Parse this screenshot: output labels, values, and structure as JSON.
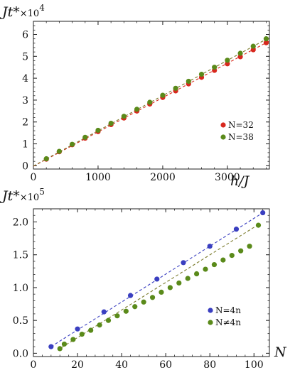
{
  "chart_data": [
    {
      "type": "scatter",
      "title": "",
      "ylabel": {
        "main": "Jt*",
        "times": "×10",
        "exp": "4"
      },
      "xlabel": "h/J",
      "xlim": [
        0,
        3650
      ],
      "ylim": [
        -0.15,
        6.6
      ],
      "xticks": [
        0,
        1000,
        2000,
        3000
      ],
      "yticks": [
        0,
        1,
        2,
        3,
        4,
        5,
        6
      ],
      "grid": false,
      "legend_position": "lower-right",
      "series": [
        {
          "name": "N=32",
          "color": "#d8281e",
          "line_color": "#d8281e",
          "x": [
            200,
            400,
            600,
            800,
            1000,
            1200,
            1400,
            1600,
            1800,
            2000,
            2200,
            2400,
            2600,
            2800,
            3000,
            3200,
            3400,
            3600
          ],
          "y": [
            0.3,
            0.64,
            0.96,
            1.26,
            1.56,
            1.88,
            2.18,
            2.5,
            2.82,
            3.12,
            3.42,
            3.74,
            4.04,
            4.36,
            4.66,
            4.98,
            5.3,
            5.62
          ]
        },
        {
          "name": "N=38",
          "color": "#5a8a1a",
          "line_color": "#7a7a2a",
          "x": [
            200,
            400,
            600,
            800,
            1000,
            1200,
            1400,
            1600,
            1800,
            2000,
            2200,
            2400,
            2600,
            2800,
            3000,
            3200,
            3400,
            3600
          ],
          "y": [
            0.32,
            0.66,
            0.98,
            1.3,
            1.62,
            1.94,
            2.26,
            2.58,
            2.9,
            3.22,
            3.54,
            3.86,
            4.18,
            4.5,
            4.82,
            5.14,
            5.46,
            5.8
          ]
        }
      ],
      "fits": [
        {
          "series": "N=32",
          "x": [
            0,
            3650
          ],
          "y": [
            -0.02,
            5.7
          ],
          "color": "#d8281e"
        },
        {
          "series": "N=38",
          "x": [
            0,
            3650
          ],
          "y": [
            -0.01,
            5.86
          ],
          "color": "#7a7a2a"
        }
      ]
    },
    {
      "type": "scatter",
      "title": "",
      "ylabel": {
        "main": "Jt*",
        "times": "×10",
        "exp": "5"
      },
      "xlabel": "N",
      "xlim": [
        0,
        107
      ],
      "ylim": [
        -0.05,
        2.2
      ],
      "xticks": [
        0,
        20,
        40,
        60,
        80,
        100
      ],
      "yticks": [
        0.0,
        0.5,
        1.0,
        1.5,
        2.0
      ],
      "ytick_labels": [
        "0.0",
        "0.5",
        "1.0",
        "1.5",
        "2.0"
      ],
      "grid": false,
      "legend_position": "lower-right",
      "series": [
        {
          "name": "N=4n",
          "color": "#3a3fc0",
          "x": [
            8,
            20,
            32,
            44,
            56,
            68,
            80,
            92,
            104
          ],
          "y": [
            0.1,
            0.37,
            0.63,
            0.88,
            1.13,
            1.38,
            1.63,
            1.89,
            2.14
          ]
        },
        {
          "name": "N≠4n",
          "color": "#5a8a1a",
          "x": [
            12,
            14,
            18,
            22,
            26,
            30,
            34,
            38,
            42,
            46,
            50,
            54,
            58,
            62,
            66,
            70,
            74,
            78,
            82,
            86,
            90,
            94,
            98,
            102
          ],
          "y": [
            0.07,
            0.14,
            0.21,
            0.29,
            0.35,
            0.43,
            0.5,
            0.57,
            0.64,
            0.71,
            0.78,
            0.85,
            0.93,
            1.0,
            1.07,
            1.14,
            1.21,
            1.28,
            1.35,
            1.42,
            1.49,
            1.56,
            1.63,
            1.95
          ]
        }
      ],
      "fits": [
        {
          "series": "N=4n",
          "x": [
            8,
            104
          ],
          "y": [
            0.1,
            2.14
          ],
          "color": "#3a3fc0"
        },
        {
          "series": "N≠4n",
          "x": [
            11,
            102
          ],
          "y": [
            0.05,
            1.96
          ],
          "color": "#7a7a2a"
        }
      ]
    }
  ]
}
